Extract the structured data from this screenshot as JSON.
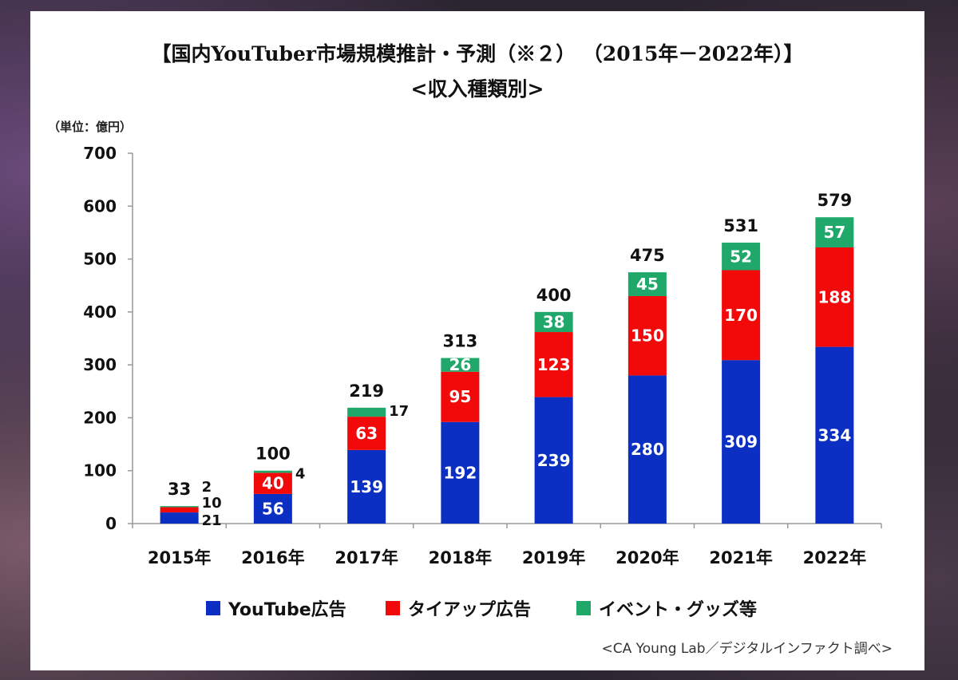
{
  "title": "【国内YouTuber市場規模推計・予測（※２） （2015年－2022年）】",
  "subtitle": "<収入種類別>",
  "unit_label": "（単位：億円）",
  "source": "<CA Young Lab／デジタルインファクト調べ>",
  "colors": {
    "youtube_ad": "#0b2fc2",
    "tieup_ad": "#f20a0a",
    "event_goods": "#1fa86a"
  },
  "chart_data": {
    "type": "bar",
    "stacked": true,
    "categories": [
      "2015年",
      "2016年",
      "2017年",
      "2018年",
      "2019年",
      "2020年",
      "2021年",
      "2022年"
    ],
    "series": [
      {
        "name": "YouTube広告",
        "values": [
          21,
          56,
          139,
          192,
          239,
          280,
          309,
          334
        ]
      },
      {
        "name": "タイアップ広告",
        "values": [
          10,
          40,
          63,
          95,
          123,
          150,
          170,
          188
        ]
      },
      {
        "name": "イベント・グッズ等",
        "values": [
          2,
          4,
          17,
          26,
          38,
          45,
          52,
          57
        ]
      }
    ],
    "totals": [
      33,
      100,
      219,
      313,
      400,
      475,
      531,
      579
    ],
    "ylim": [
      0,
      700
    ],
    "yticks": [
      0,
      100,
      200,
      300,
      400,
      500,
      600,
      700
    ],
    "grid": false,
    "legend_position": "bottom"
  }
}
